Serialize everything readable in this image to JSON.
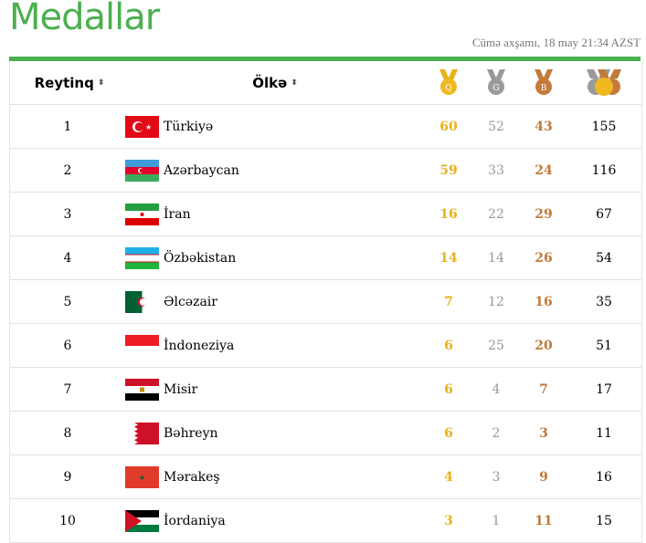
{
  "title": "Medallar",
  "date": "Cümə axşamı, 18 may 21:34 AZST",
  "header": {
    "rank": "Reytinq",
    "country": "Ölkə",
    "gold_icon": "gold-medal-icon",
    "silver_icon": "silver-medal-icon",
    "bronze_icon": "bronze-medal-icon",
    "total_icon": "total-medals-icon",
    "gold_letter": "Q",
    "silver_letter": "G",
    "bronze_letter": "B"
  },
  "colors": {
    "accent": "#4caf50",
    "gold": "#e8b21a",
    "silver": "#999999",
    "bronze": "#c07a3a"
  },
  "rows": [
    {
      "rank": "1",
      "country": "Türkiyə",
      "gold": "60",
      "silver": "52",
      "bronze": "43",
      "total": "155",
      "flag": "turkey"
    },
    {
      "rank": "2",
      "country": "Azərbaycan",
      "gold": "59",
      "silver": "33",
      "bronze": "24",
      "total": "116",
      "flag": "azerbaijan"
    },
    {
      "rank": "3",
      "country": "İran",
      "gold": "16",
      "silver": "22",
      "bronze": "29",
      "total": "67",
      "flag": "iran"
    },
    {
      "rank": "4",
      "country": "Özbəkistan",
      "gold": "14",
      "silver": "14",
      "bronze": "26",
      "total": "54",
      "flag": "uzbekistan"
    },
    {
      "rank": "5",
      "country": "Əlcəzair",
      "gold": "7",
      "silver": "12",
      "bronze": "16",
      "total": "35",
      "flag": "algeria"
    },
    {
      "rank": "6",
      "country": "İndoneziya",
      "gold": "6",
      "silver": "25",
      "bronze": "20",
      "total": "51",
      "flag": "indonesia"
    },
    {
      "rank": "7",
      "country": "Misir",
      "gold": "6",
      "silver": "4",
      "bronze": "7",
      "total": "17",
      "flag": "egypt"
    },
    {
      "rank": "8",
      "country": "Bəhreyn",
      "gold": "6",
      "silver": "2",
      "bronze": "3",
      "total": "11",
      "flag": "bahrain"
    },
    {
      "rank": "9",
      "country": "Mərakeş",
      "gold": "4",
      "silver": "3",
      "bronze": "9",
      "total": "16",
      "flag": "morocco"
    },
    {
      "rank": "10",
      "country": "İordaniya",
      "gold": "3",
      "silver": "1",
      "bronze": "11",
      "total": "15",
      "flag": "jordan"
    }
  ]
}
